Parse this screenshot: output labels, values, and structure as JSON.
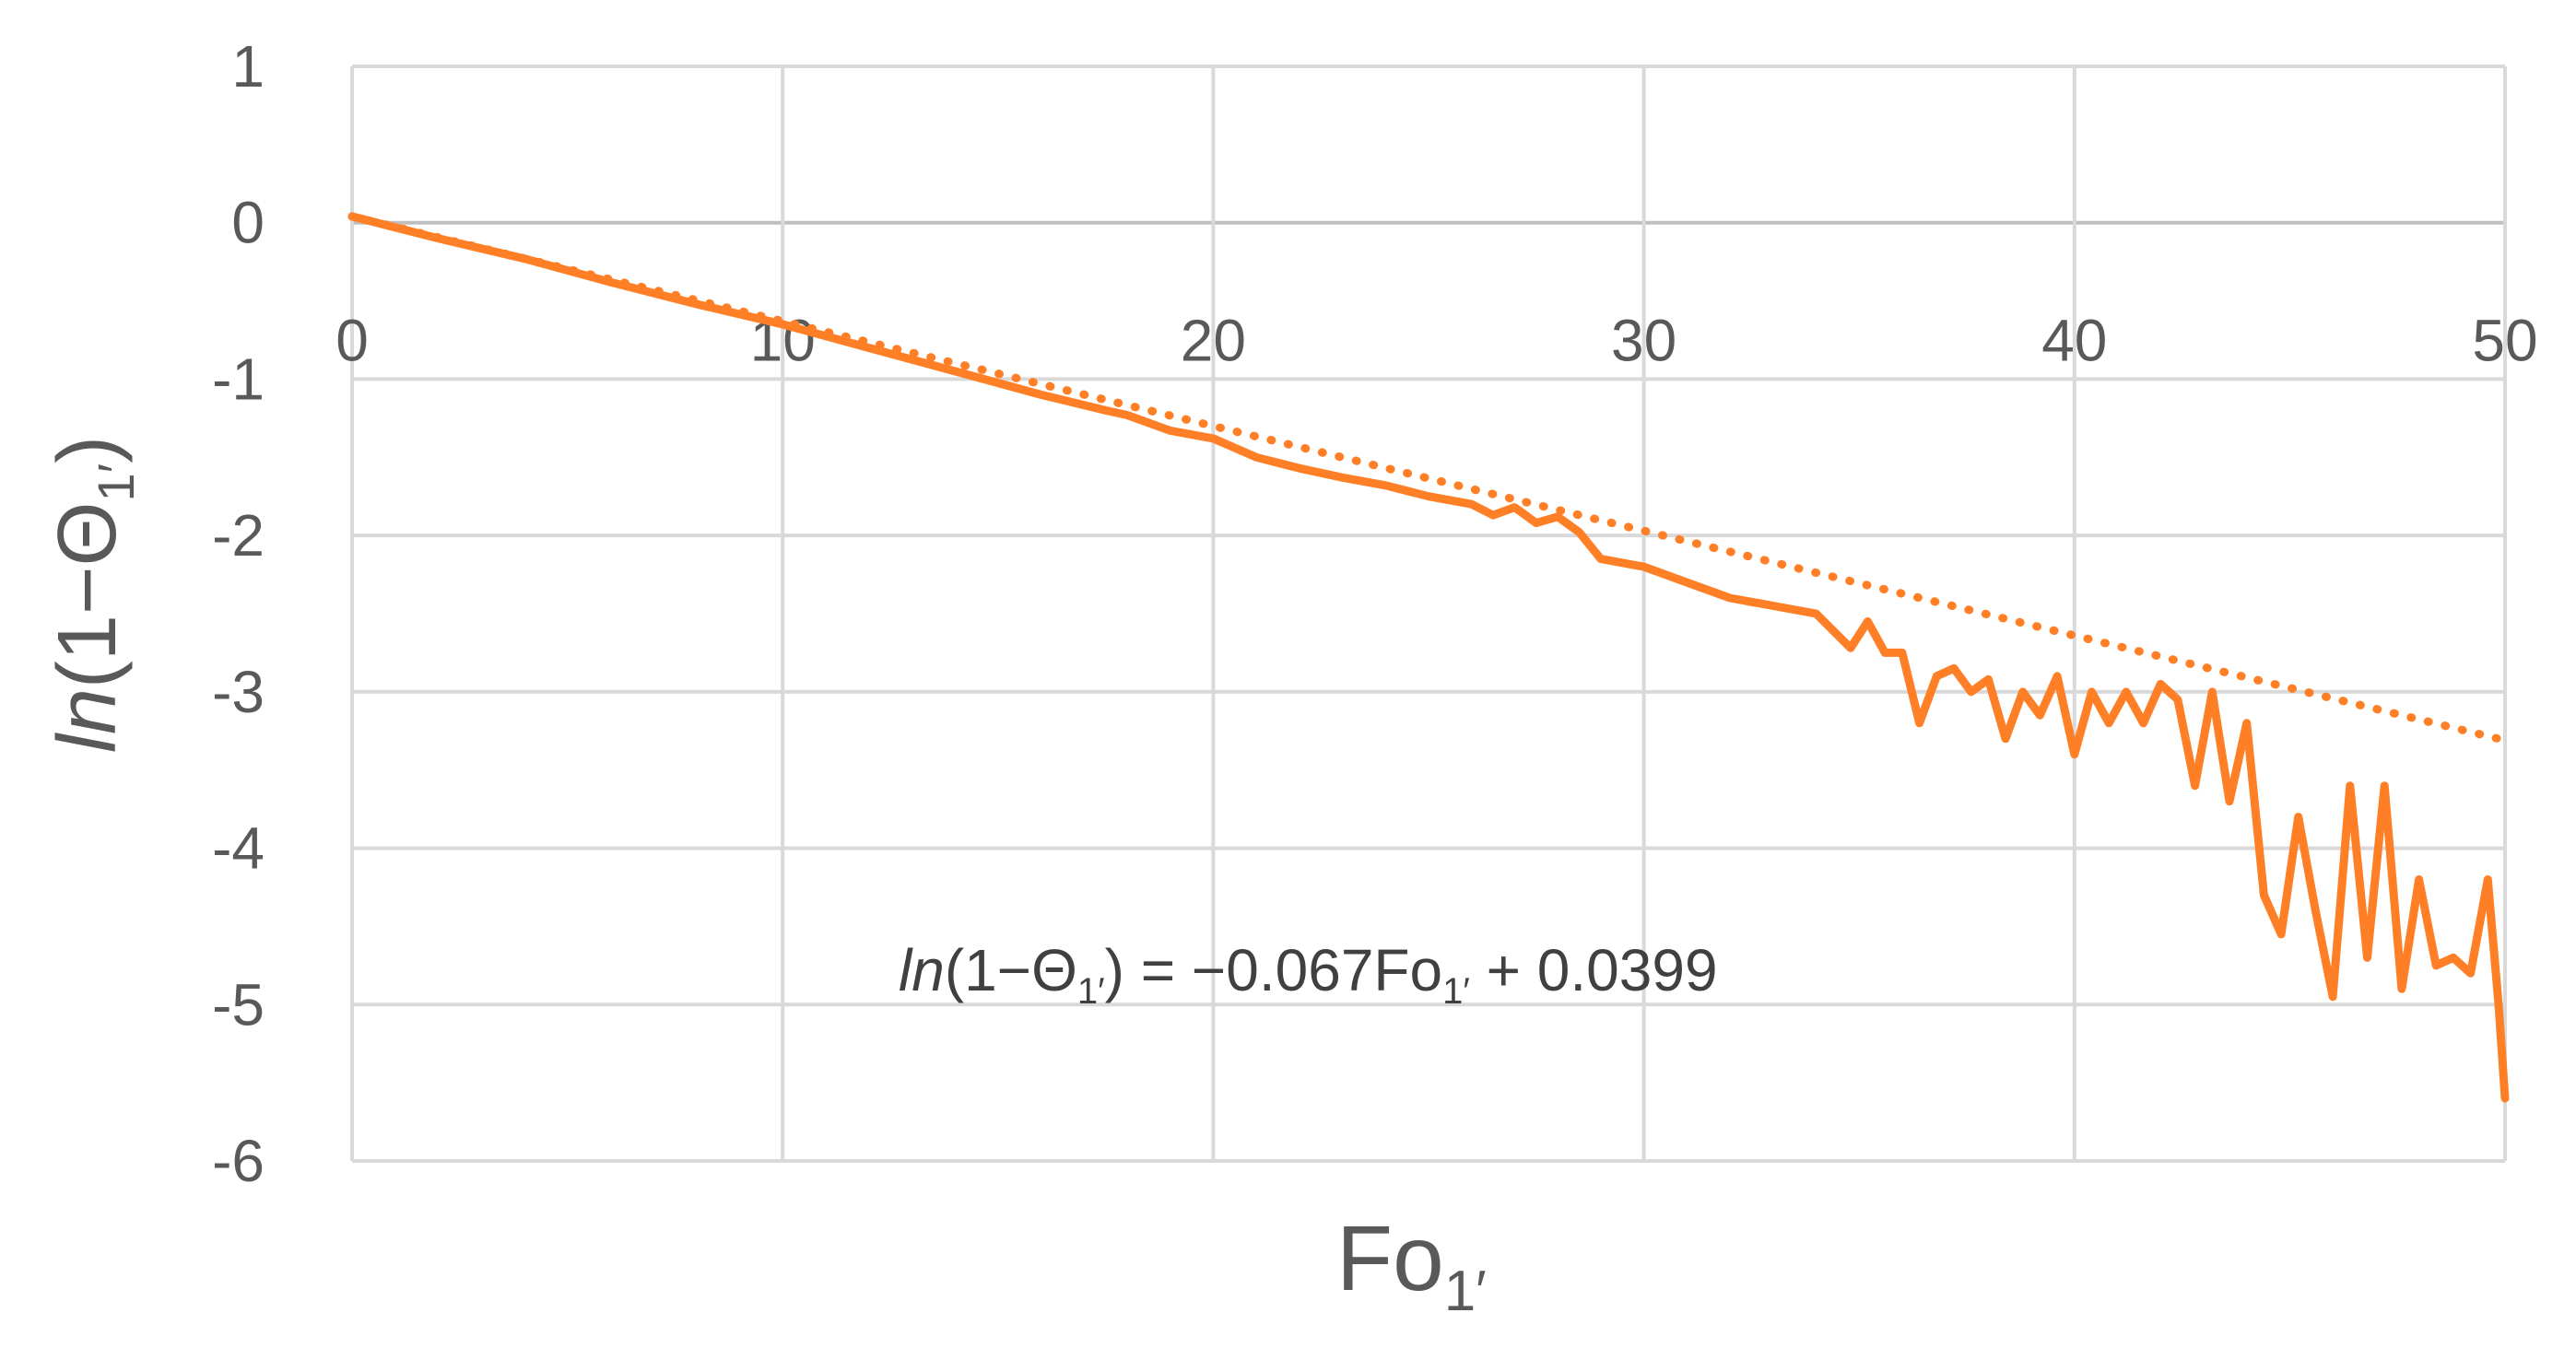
{
  "chart_data": {
    "type": "line",
    "xlabel": {
      "main": "Fo",
      "sub": "1′"
    },
    "ylabel": {
      "italic": "ln",
      "main": "(1−Θ",
      "sub": "1′",
      "close": ")"
    },
    "xlim": [
      0,
      50
    ],
    "ylim": [
      -6,
      1
    ],
    "x_ticks": [
      "0",
      "10",
      "20",
      "30",
      "40",
      "50"
    ],
    "y_ticks": [
      "1",
      "0",
      "-1",
      "-2",
      "-3",
      "-4",
      "-5",
      "-6"
    ],
    "grid": true,
    "series": [
      {
        "style": "solid",
        "color": "#FF7F27",
        "x": [
          0,
          2,
          4,
          6,
          8,
          10,
          12,
          14,
          16,
          17.5,
          18,
          19,
          20,
          21,
          22,
          23,
          24,
          25,
          26,
          26.5,
          27,
          27.5,
          28,
          28.5,
          29,
          30,
          31,
          32,
          33,
          34,
          34.8,
          35.2,
          35.6,
          36,
          36.4,
          36.8,
          37.2,
          37.6,
          38,
          38.4,
          38.8,
          39.2,
          39.6,
          40,
          40.4,
          40.8,
          41.2,
          41.6,
          42,
          42.4,
          42.8,
          43.2,
          43.6,
          44,
          44.4,
          44.8,
          45.2,
          45.6,
          46,
          46.4,
          46.8,
          47.2,
          47.6,
          48,
          48.4,
          48.8,
          49.2,
          49.6,
          49.85,
          50
        ],
        "y": [
          0.04,
          -0.1,
          -0.23,
          -0.38,
          -0.52,
          -0.65,
          -0.8,
          -0.95,
          -1.1,
          -1.2,
          -1.23,
          -1.33,
          -1.38,
          -1.5,
          -1.57,
          -1.63,
          -1.68,
          -1.75,
          -1.8,
          -1.87,
          -1.82,
          -1.92,
          -1.88,
          -1.98,
          -2.15,
          -2.2,
          -2.3,
          -2.4,
          -2.45,
          -2.5,
          -2.72,
          -2.55,
          -2.75,
          -2.75,
          -3.2,
          -2.9,
          -2.85,
          -3.0,
          -2.92,
          -3.3,
          -3.0,
          -3.15,
          -2.9,
          -3.4,
          -3.0,
          -3.2,
          -3.0,
          -3.2,
          -2.95,
          -3.05,
          -3.6,
          -3.0,
          -3.7,
          -3.2,
          -4.3,
          -4.55,
          -3.8,
          -4.4,
          -4.95,
          -3.6,
          -4.7,
          -3.6,
          -4.9,
          -4.2,
          -4.75,
          -4.7,
          -4.8,
          -4.2,
          -5.0,
          -5.6
        ]
      },
      {
        "style": "dotted",
        "color": "#FF7F27",
        "slope": -0.067,
        "intercept": 0.0399
      }
    ],
    "annotation": {
      "italic": "ln",
      "part1": "(1−Θ",
      "sub1": "1′",
      "part2": ")  = −0.067Fo",
      "sub2": "1′",
      "part3": " + 0.0399"
    }
  }
}
